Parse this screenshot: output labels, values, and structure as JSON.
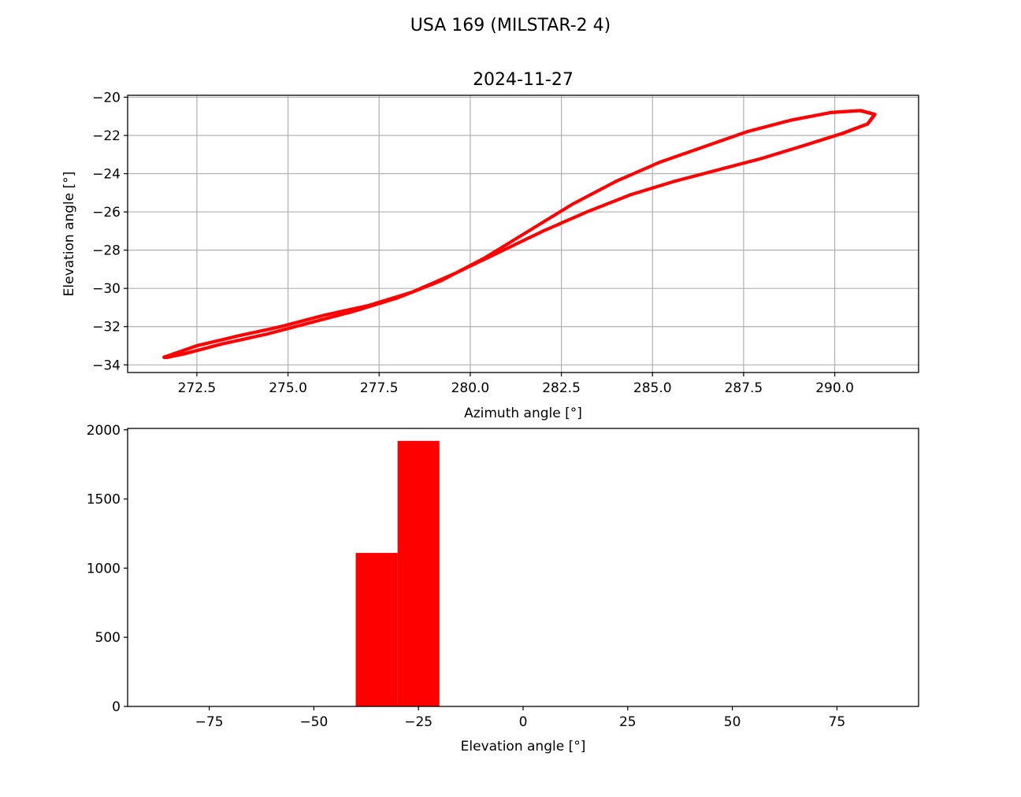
{
  "figure": {
    "suptitle": "USA 169 (MILSTAR-2 4)"
  },
  "chart_data": [
    {
      "type": "scatter",
      "title": "2024-11-27",
      "xlabel": "Azimuth angle [°]",
      "ylabel": "Elevation angle [°]",
      "xlim": [
        270.6,
        292.3
      ],
      "ylim": [
        -34.4,
        -19.9
      ],
      "xticks": [
        272.5,
        275.0,
        277.5,
        280.0,
        282.5,
        285.0,
        287.5,
        290.0
      ],
      "xtick_labels": [
        "272.5",
        "275.0",
        "277.5",
        "280.0",
        "282.5",
        "285.0",
        "287.5",
        "290.0"
      ],
      "yticks": [
        -34,
        -32,
        -30,
        -28,
        -26,
        -24,
        -22,
        -20
      ],
      "ytick_labels": [
        "−34",
        "−32",
        "−30",
        "−28",
        "−26",
        "−24",
        "−22",
        "−20"
      ],
      "grid": true,
      "marker_color": "#ff0000",
      "series": [
        {
          "x": [
            271.6,
            272.5,
            273.6,
            274.8,
            276.0,
            277.2,
            278.4,
            279.6,
            280.8,
            282.0,
            283.2,
            284.4,
            285.6,
            286.8,
            288.0,
            289.2,
            290.2,
            290.9,
            291.1,
            290.7,
            289.9,
            288.8,
            287.6,
            286.4,
            285.2,
            284.0,
            282.8,
            281.6,
            280.4,
            279.2,
            278.0,
            276.8,
            275.6,
            274.4,
            273.2,
            272.2,
            271.7,
            271.6
          ],
          "y": [
            -33.6,
            -33.0,
            -32.5,
            -32.0,
            -31.4,
            -30.9,
            -30.2,
            -29.2,
            -28.1,
            -27.0,
            -26.0,
            -25.1,
            -24.4,
            -23.8,
            -23.2,
            -22.5,
            -21.9,
            -21.4,
            -20.9,
            -20.7,
            -20.8,
            -21.2,
            -21.8,
            -22.6,
            -23.4,
            -24.4,
            -25.6,
            -27.0,
            -28.4,
            -29.6,
            -30.5,
            -31.2,
            -31.8,
            -32.4,
            -32.9,
            -33.4,
            -33.6,
            -33.6
          ]
        }
      ]
    },
    {
      "type": "bar",
      "title": "",
      "xlabel": "Elevation angle [°]",
      "ylabel": "",
      "xlim": [
        -94.5,
        94.5
      ],
      "ylim": [
        0,
        2010
      ],
      "xticks": [
        -75,
        -50,
        -25,
        0,
        25,
        50,
        75
      ],
      "xtick_labels": [
        "−75",
        "−50",
        "−25",
        "0",
        "25",
        "50",
        "75"
      ],
      "yticks": [
        0,
        500,
        1000,
        1500,
        2000
      ],
      "ytick_labels": [
        "0",
        "500",
        "1000",
        "1500",
        "2000"
      ],
      "grid": false,
      "bar_color": "#ff0000",
      "bins": [
        {
          "start": -40,
          "end": -30,
          "count": 1110
        },
        {
          "start": -30,
          "end": -20,
          "count": 1920
        }
      ]
    }
  ]
}
